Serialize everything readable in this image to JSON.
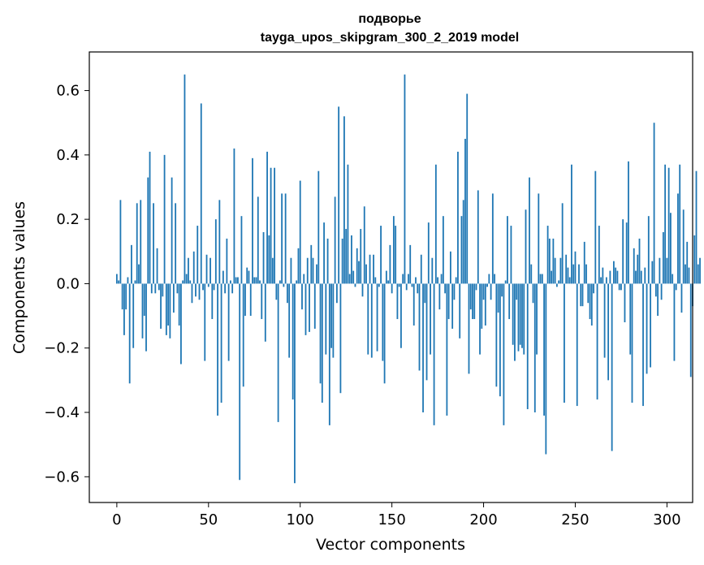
{
  "chart_data": {
    "type": "bar",
    "title": "подворье",
    "subtitle": "tayga_upos_skipgram_300_2_2019 model",
    "xlabel": "Vector components",
    "ylabel": "Components values",
    "xlim": [
      -15,
      314
    ],
    "ylim": [
      -0.68,
      0.72
    ],
    "xticks": [
      0,
      50,
      100,
      150,
      200,
      250,
      300
    ],
    "yticks": [
      -0.6,
      -0.4,
      -0.2,
      0.0,
      0.2,
      0.4,
      0.6
    ],
    "ytick_labels": [
      "−0.6",
      "−0.4",
      "−0.2",
      "0.0",
      "0.2",
      "0.4",
      "0.6"
    ],
    "grid": false,
    "color": "#1f77b4",
    "values": [
      0.03,
      0.01,
      0.26,
      -0.08,
      -0.16,
      -0.08,
      0.02,
      -0.31,
      0.12,
      -0.2,
      0.01,
      0.25,
      0.06,
      0.26,
      -0.17,
      -0.1,
      -0.21,
      0.33,
      0.41,
      -0.03,
      0.25,
      -0.03,
      0.11,
      -0.02,
      -0.14,
      -0.04,
      0.4,
      -0.16,
      -0.13,
      -0.17,
      0.33,
      -0.09,
      0.25,
      -0.03,
      -0.13,
      -0.25,
      0.01,
      0.65,
      0.03,
      0.08,
      0.01,
      -0.06,
      0.1,
      -0.04,
      0.18,
      -0.05,
      0.56,
      -0.02,
      -0.24,
      0.09,
      -0.01,
      0.08,
      -0.11,
      -0.02,
      0.2,
      -0.41,
      0.26,
      -0.37,
      0.04,
      -0.03,
      0.14,
      -0.24,
      0.01,
      -0.03,
      0.42,
      0.02,
      0.02,
      -0.61,
      0.21,
      -0.32,
      -0.1,
      0.05,
      0.04,
      -0.1,
      0.39,
      0.02,
      0.02,
      0.27,
      0.01,
      -0.11,
      0.16,
      -0.18,
      0.41,
      0.15,
      0.36,
      0.08,
      0.36,
      -0.05,
      -0.43,
      0.01,
      0.28,
      -0.01,
      0.28,
      -0.06,
      -0.23,
      0.08,
      -0.36,
      -0.62,
      0.01,
      0.11,
      0.32,
      -0.08,
      0.03,
      -0.16,
      0.08,
      -0.15,
      0.12,
      0.08,
      -0.14,
      0.06,
      0.35,
      -0.31,
      -0.37,
      0.19,
      -0.22,
      0.14,
      -0.44,
      -0.2,
      -0.23,
      0.27,
      -0.06,
      0.55,
      -0.34,
      0.14,
      0.52,
      0.17,
      0.37,
      0.03,
      0.15,
      0.04,
      -0.01,
      0.11,
      0.07,
      0.17,
      -0.04,
      0.24,
      0.06,
      -0.22,
      0.09,
      -0.23,
      0.09,
      0.02,
      -0.21,
      -0.01,
      0.18,
      -0.24,
      -0.31,
      0.04,
      0.01,
      0.12,
      -0.03,
      0.21,
      0.18,
      -0.11,
      -0.01,
      -0.2,
      0.03,
      0.65,
      -0.02,
      0.03,
      0.12,
      -0.01,
      -0.13,
      0.02,
      -0.03,
      -0.27,
      0.09,
      -0.4,
      -0.06,
      -0.3,
      0.19,
      -0.22,
      0.08,
      -0.44,
      0.37,
      0.02,
      -0.08,
      0.03,
      0.21,
      -0.03,
      -0.41,
      -0.11,
      0.1,
      -0.14,
      -0.05,
      0.02,
      0.41,
      -0.17,
      0.21,
      0.26,
      0.45,
      0.59,
      -0.28,
      -0.08,
      -0.11,
      -0.11,
      -0.02,
      0.29,
      -0.22,
      -0.14,
      -0.05,
      -0.13,
      -0.01,
      0.03,
      -0.05,
      0.28,
      0.03,
      -0.32,
      -0.09,
      -0.35,
      -0.04,
      -0.44,
      0.01,
      0.21,
      -0.11,
      0.18,
      -0.19,
      -0.24,
      -0.05,
      -0.21,
      -0.19,
      -0.2,
      -0.22,
      0.23,
      -0.39,
      0.33,
      0.06,
      -0.06,
      -0.4,
      -0.22,
      0.28,
      0.03,
      0.03,
      -0.41,
      -0.53,
      0.18,
      0.14,
      0.04,
      0.14,
      0.08,
      -0.01,
      0.01,
      0.08,
      0.25,
      -0.37,
      0.09,
      0.05,
      0.02,
      0.37,
      0.06,
      0.1,
      -0.38,
      0.06,
      -0.07,
      -0.07,
      0.13,
      0.06,
      -0.06,
      -0.11,
      -0.13,
      -0.03,
      0.35,
      -0.36,
      0.18,
      0.02,
      0.05,
      -0.23,
      0.02,
      -0.3,
      0.04,
      -0.52,
      0.07,
      0.05,
      0.04,
      -0.02,
      -0.02,
      0.2,
      -0.12,
      0.19,
      0.38,
      -0.22,
      -0.37,
      0.11,
      0.04,
      0.09,
      0.14,
      0.04,
      -0.38,
      0.05,
      -0.28,
      0.21,
      -0.26,
      0.07,
      0.5,
      -0.04,
      -0.1,
      0.08,
      -0.05,
      0.16,
      0.37,
      0.08,
      0.36,
      0.22,
      0.03,
      -0.24,
      -0.02,
      0.28,
      0.37,
      -0.09,
      0.23,
      0.06,
      0.13,
      0.05,
      -0.29,
      -0.07,
      0.15,
      0.35,
      0.06,
      0.08
    ]
  }
}
